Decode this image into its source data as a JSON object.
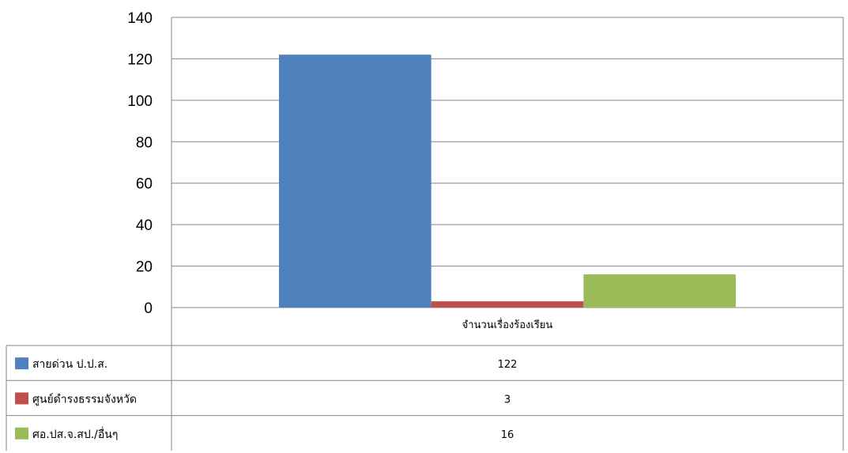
{
  "chart_data": {
    "type": "bar",
    "categories": [
      "จำนวนเรื่องร้องเรียน"
    ],
    "series": [
      {
        "name": "สายด่วน ป.ป.ส.",
        "values": [
          122
        ],
        "color": "#4f81bd"
      },
      {
        "name": "ศูนย์ดำรงธรรมจังหวัด",
        "values": [
          3
        ],
        "color": "#c0504d"
      },
      {
        "name": "ศอ.ปส.จ.สป./อื่นๆ",
        "values": [
          16
        ],
        "color": "#9bbb59"
      }
    ],
    "ylim": [
      0,
      140
    ],
    "yticks": [
      0,
      20,
      40,
      60,
      80,
      100,
      120,
      140
    ],
    "grid": true,
    "legend": "data-table-below",
    "data_table": true
  }
}
